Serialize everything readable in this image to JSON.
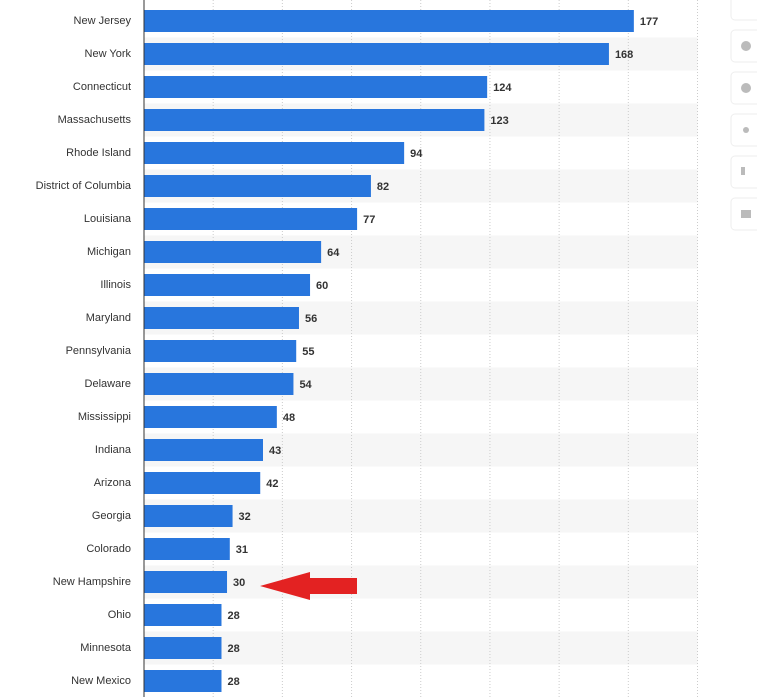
{
  "chart_data": {
    "type": "bar",
    "orientation": "horizontal",
    "categories": [
      "New Jersey",
      "New York",
      "Connecticut",
      "Massachusetts",
      "Rhode Island",
      "District of Columbia",
      "Louisiana",
      "Michigan",
      "Illinois",
      "Maryland",
      "Pennsylvania",
      "Delaware",
      "Mississippi",
      "Indiana",
      "Arizona",
      "Georgia",
      "Colorado",
      "New Hampshire",
      "Ohio",
      "Minnesota",
      "New Mexico"
    ],
    "values": [
      177,
      168,
      124,
      123,
      94,
      82,
      77,
      64,
      60,
      56,
      55,
      54,
      48,
      43,
      42,
      32,
      31,
      30,
      28,
      28,
      28
    ],
    "color": "#2876dd",
    "xlim": [
      0,
      200
    ],
    "xticks": [
      0,
      25,
      50,
      75,
      100,
      125,
      150,
      175,
      200
    ],
    "grid": true
  }
}
